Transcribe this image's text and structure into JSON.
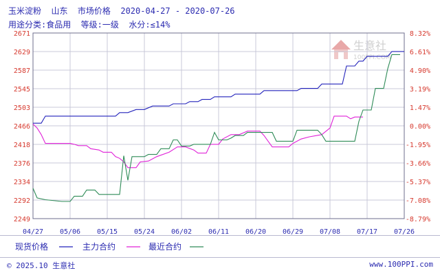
{
  "header": {
    "title": "玉米淀粉  山东  市场价格  2020-04-27 - 2020-07-26",
    "subtitle": "用途分类:食品用  等级:一级  水分:≤14%"
  },
  "watermark": {
    "text": "生意社",
    "url": "100PPI.COM"
  },
  "footer": {
    "copyright": "© 2025.10 生意社",
    "site": "www.100PPI.com"
  },
  "colors": {
    "spot": "#2222bb",
    "main": "#e020d8",
    "recent": "#2e8b57",
    "grid": "#c8c8d8",
    "axis": "#6e6e8c"
  },
  "chart_data": {
    "type": "line",
    "title": "玉米淀粉  山东  市场价格",
    "ylim": [
      2249,
      2671
    ],
    "y_ticks": [
      "2671",
      "2629",
      "2587",
      "2545",
      "2503",
      "2466",
      "2418",
      "2376",
      "2334",
      "2292",
      "2249"
    ],
    "y2lim": [
      -8.79,
      8.32
    ],
    "y2_ticks": [
      "8.32%",
      "6.61%",
      "4.90%",
      "3.19%",
      "1.47%",
      "0.00%",
      "-1.95%",
      "-3.66%",
      "-5.37%",
      "-7.08%",
      "-8.79%"
    ],
    "x_ticks": [
      "04/27",
      "05/06",
      "05/15",
      "05/24",
      "06/02",
      "06/11",
      "06/20",
      "06/29",
      "07/08",
      "07/17",
      "07/26"
    ],
    "grid": true,
    "legend_placement": "bottom",
    "series": [
      {
        "name": "现货价格",
        "points": [
          [
            "04/27",
            2466
          ],
          [
            "04/29",
            2466
          ],
          [
            "04/30",
            2482
          ],
          [
            "05/02",
            2482
          ],
          [
            "05/08",
            2482
          ],
          [
            "05/12",
            2482
          ],
          [
            "05/15",
            2482
          ],
          [
            "05/17",
            2482
          ],
          [
            "05/18",
            2490
          ],
          [
            "05/20",
            2490
          ],
          [
            "05/22",
            2497
          ],
          [
            "05/24",
            2497
          ],
          [
            "05/26",
            2505
          ],
          [
            "05/30",
            2505
          ],
          [
            "05/31",
            2510
          ],
          [
            "06/03",
            2510
          ],
          [
            "06/04",
            2515
          ],
          [
            "06/06",
            2515
          ],
          [
            "06/07",
            2520
          ],
          [
            "06/09",
            2520
          ],
          [
            "06/10",
            2526
          ],
          [
            "06/14",
            2526
          ],
          [
            "06/15",
            2532
          ],
          [
            "06/21",
            2532
          ],
          [
            "06/22",
            2540
          ],
          [
            "06/30",
            2540
          ],
          [
            "07/01",
            2545
          ],
          [
            "07/05",
            2545
          ],
          [
            "07/06",
            2555
          ],
          [
            "07/11",
            2555
          ],
          [
            "07/12",
            2596
          ],
          [
            "07/14",
            2596
          ],
          [
            "07/15",
            2607
          ],
          [
            "07/16",
            2607
          ],
          [
            "07/17",
            2618
          ],
          [
            "07/22",
            2618
          ],
          [
            "07/23",
            2629
          ],
          [
            "07/26",
            2629
          ]
        ]
      },
      {
        "name": "主力合约",
        "points": [
          [
            "04/27",
            2464
          ],
          [
            "04/28",
            2455
          ],
          [
            "04/29",
            2440
          ],
          [
            "04/30",
            2420
          ],
          [
            "05/04",
            2420
          ],
          [
            "05/06",
            2420
          ],
          [
            "05/07",
            2418
          ],
          [
            "05/08",
            2415
          ],
          [
            "05/10",
            2415
          ],
          [
            "05/11",
            2408
          ],
          [
            "05/13",
            2405
          ],
          [
            "05/14",
            2400
          ],
          [
            "05/16",
            2400
          ],
          [
            "05/17",
            2390
          ],
          [
            "05/18",
            2386
          ],
          [
            "05/19",
            2378
          ],
          [
            "05/20",
            2365
          ],
          [
            "05/22",
            2365
          ],
          [
            "05/23",
            2378
          ],
          [
            "05/25",
            2380
          ],
          [
            "05/27",
            2390
          ],
          [
            "05/30",
            2400
          ],
          [
            "06/01",
            2412
          ],
          [
            "06/03",
            2412
          ],
          [
            "06/05",
            2405
          ],
          [
            "06/06",
            2398
          ],
          [
            "06/08",
            2398
          ],
          [
            "06/09",
            2418
          ],
          [
            "06/11",
            2418
          ],
          [
            "06/12",
            2430
          ],
          [
            "06/14",
            2440
          ],
          [
            "06/16",
            2440
          ],
          [
            "06/18",
            2448
          ],
          [
            "06/21",
            2448
          ],
          [
            "06/22",
            2438
          ],
          [
            "06/23",
            2425
          ],
          [
            "06/24",
            2412
          ],
          [
            "06/28",
            2412
          ],
          [
            "06/29",
            2420
          ],
          [
            "07/01",
            2430
          ],
          [
            "07/03",
            2435
          ],
          [
            "07/06",
            2440
          ],
          [
            "07/08",
            2455
          ],
          [
            "07/09",
            2482
          ],
          [
            "07/12",
            2482
          ],
          [
            "07/13",
            2476
          ],
          [
            "07/14",
            2480
          ],
          [
            "07/16",
            2480
          ]
        ]
      },
      {
        "name": "最近合约",
        "points": [
          [
            "04/27",
            2318
          ],
          [
            "04/28",
            2296
          ],
          [
            "04/30",
            2292
          ],
          [
            "05/04",
            2288
          ],
          [
            "05/06",
            2288
          ],
          [
            "05/07",
            2300
          ],
          [
            "05/09",
            2300
          ],
          [
            "05/10",
            2314
          ],
          [
            "05/12",
            2314
          ],
          [
            "05/13",
            2304
          ],
          [
            "05/18",
            2304
          ],
          [
            "05/19",
            2392
          ],
          [
            "05/20",
            2336
          ],
          [
            "05/21",
            2390
          ],
          [
            "05/24",
            2390
          ],
          [
            "05/25",
            2395
          ],
          [
            "05/27",
            2395
          ],
          [
            "05/28",
            2408
          ],
          [
            "05/30",
            2408
          ],
          [
            "05/31",
            2428
          ],
          [
            "06/01",
            2428
          ],
          [
            "06/02",
            2414
          ],
          [
            "06/04",
            2414
          ],
          [
            "06/05",
            2418
          ],
          [
            "06/09",
            2418
          ],
          [
            "06/10",
            2445
          ],
          [
            "06/11",
            2428
          ],
          [
            "06/13",
            2428
          ],
          [
            "06/14",
            2432
          ],
          [
            "06/15",
            2438
          ],
          [
            "06/17",
            2438
          ],
          [
            "06/18",
            2445
          ],
          [
            "06/24",
            2445
          ],
          [
            "06/25",
            2425
          ],
          [
            "06/29",
            2425
          ],
          [
            "06/30",
            2450
          ],
          [
            "07/05",
            2450
          ],
          [
            "07/06",
            2440
          ],
          [
            "07/07",
            2425
          ],
          [
            "07/14",
            2425
          ],
          [
            "07/15",
            2470
          ],
          [
            "07/16",
            2496
          ],
          [
            "07/18",
            2496
          ],
          [
            "07/19",
            2545
          ],
          [
            "07/21",
            2545
          ],
          [
            "07/22",
            2590
          ],
          [
            "07/23",
            2622
          ],
          [
            "07/25",
            2622
          ]
        ]
      }
    ]
  }
}
